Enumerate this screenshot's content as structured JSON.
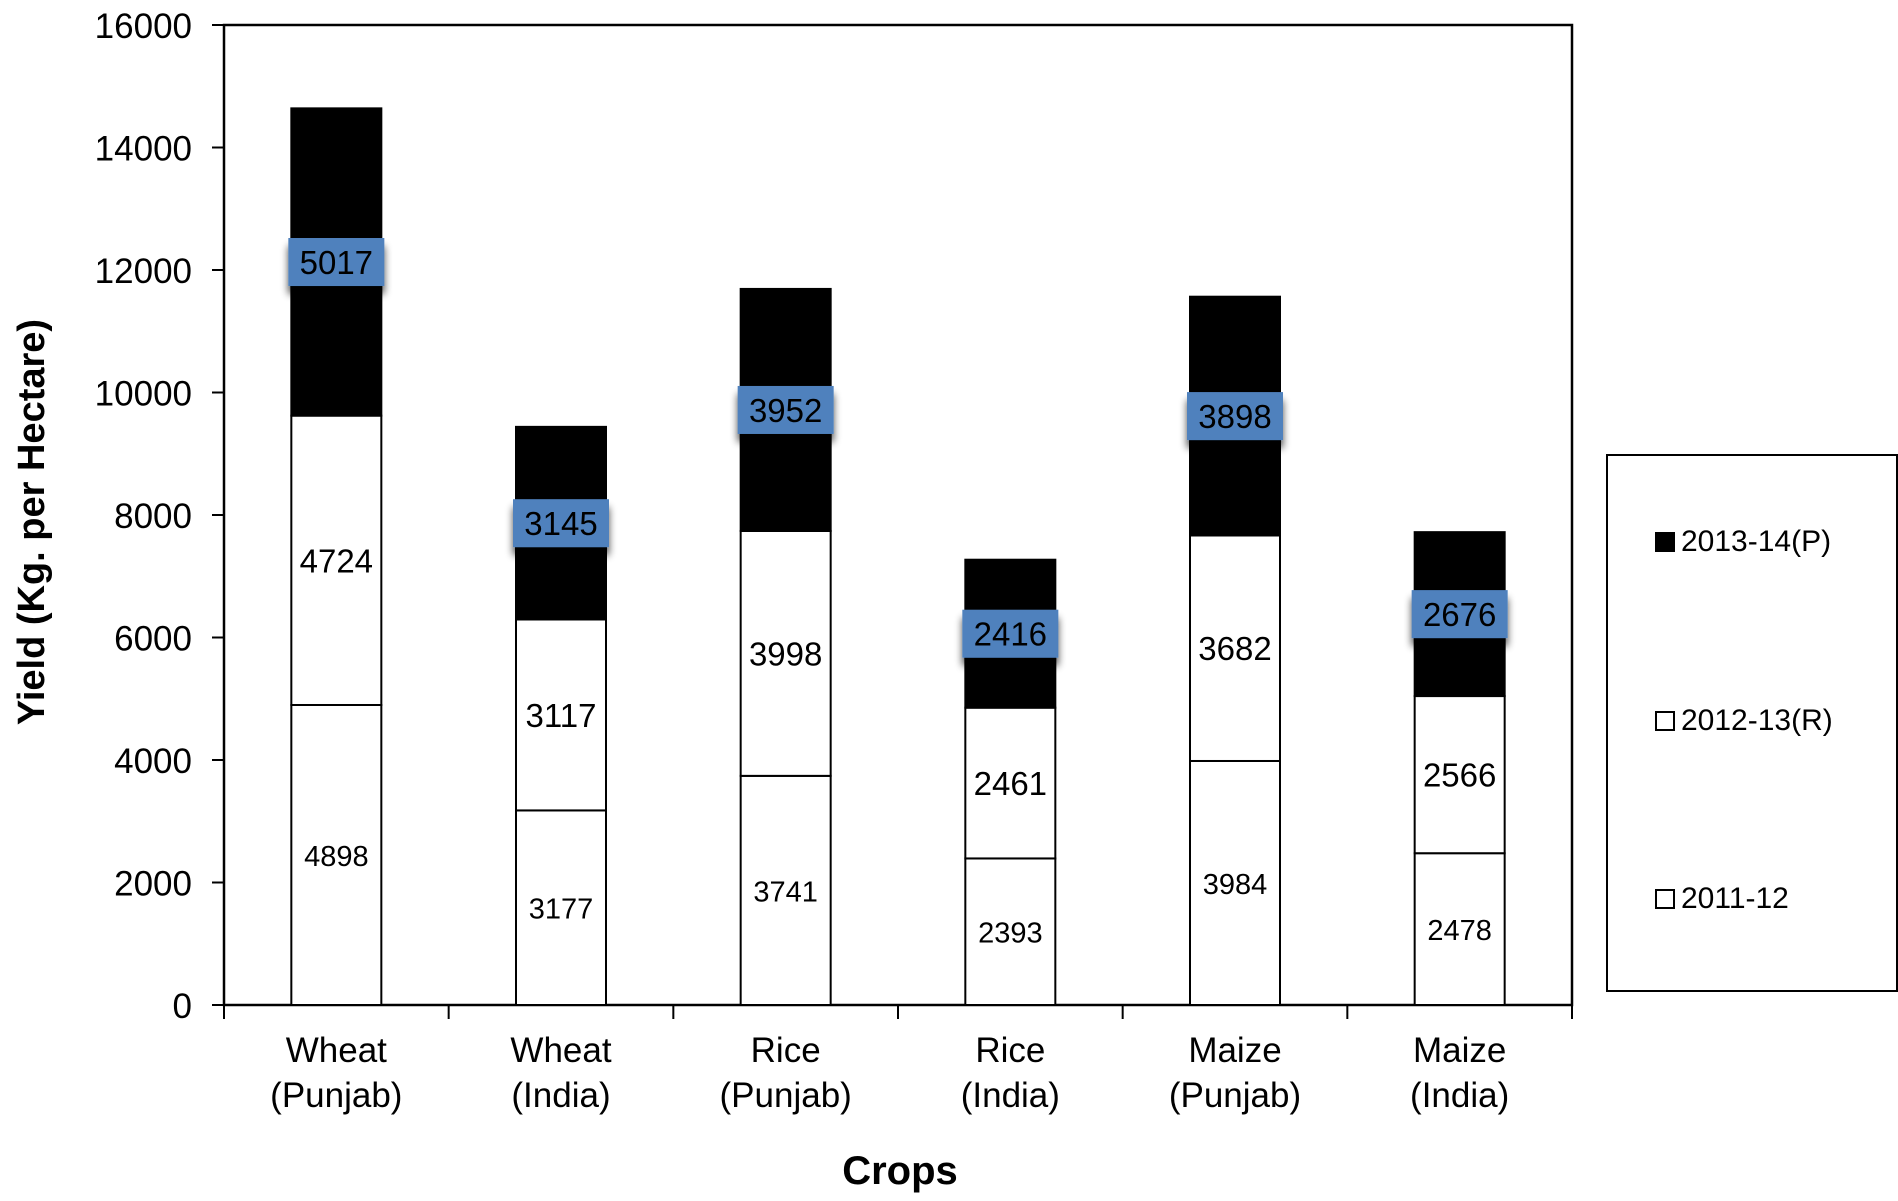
{
  "chart_data": {
    "type": "bar",
    "stacked": true,
    "title": "",
    "xlabel": "Crops",
    "ylabel": "Yield (Kg. per Hectare)",
    "ylim": [
      0,
      16000
    ],
    "yticks": [
      0,
      2000,
      4000,
      6000,
      8000,
      10000,
      12000,
      14000,
      16000
    ],
    "categories": [
      [
        "Wheat",
        "(Punjab)"
      ],
      [
        "Wheat",
        "(India)"
      ],
      [
        "Rice",
        "(Punjab)"
      ],
      [
        "Rice",
        "(India)"
      ],
      [
        "Maize",
        "(Punjab)"
      ],
      [
        "Maize",
        "(India)"
      ]
    ],
    "series": [
      {
        "name": "2011-12",
        "values": [
          4898,
          3177,
          3741,
          2393,
          3984,
          2478
        ],
        "fill": "#ffffff",
        "label_style": "plain-small"
      },
      {
        "name": "2012-13(R)",
        "values": [
          4724,
          3117,
          3998,
          2461,
          3682,
          2566
        ],
        "fill": "#ffffff",
        "label_style": "plain"
      },
      {
        "name": "2013-14(P)",
        "values": [
          5017,
          3145,
          3952,
          2416,
          3898,
          2676
        ],
        "fill": "#000000",
        "label_style": "highlight"
      }
    ],
    "legend": {
      "position": "right",
      "order": [
        "2013-14(P)",
        "2012-13(R)",
        "2011-12"
      ]
    },
    "grid": false,
    "colors": {
      "bar_stroke": "#000000",
      "axis": "#000000",
      "label_highlight": "#4f81bd"
    }
  }
}
